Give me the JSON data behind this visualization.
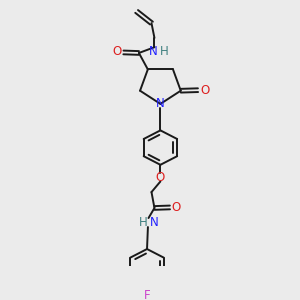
{
  "bg_color": "#ebebeb",
  "bond_color": "#1a1a1a",
  "N_color": "#2020ff",
  "O_color": "#dd2020",
  "F_color": "#cc44cc",
  "NH_color": "#408080",
  "figsize": [
    3.0,
    3.0
  ],
  "dpi": 100,
  "xlim": [
    0,
    10
  ],
  "ylim": [
    0,
    10
  ]
}
